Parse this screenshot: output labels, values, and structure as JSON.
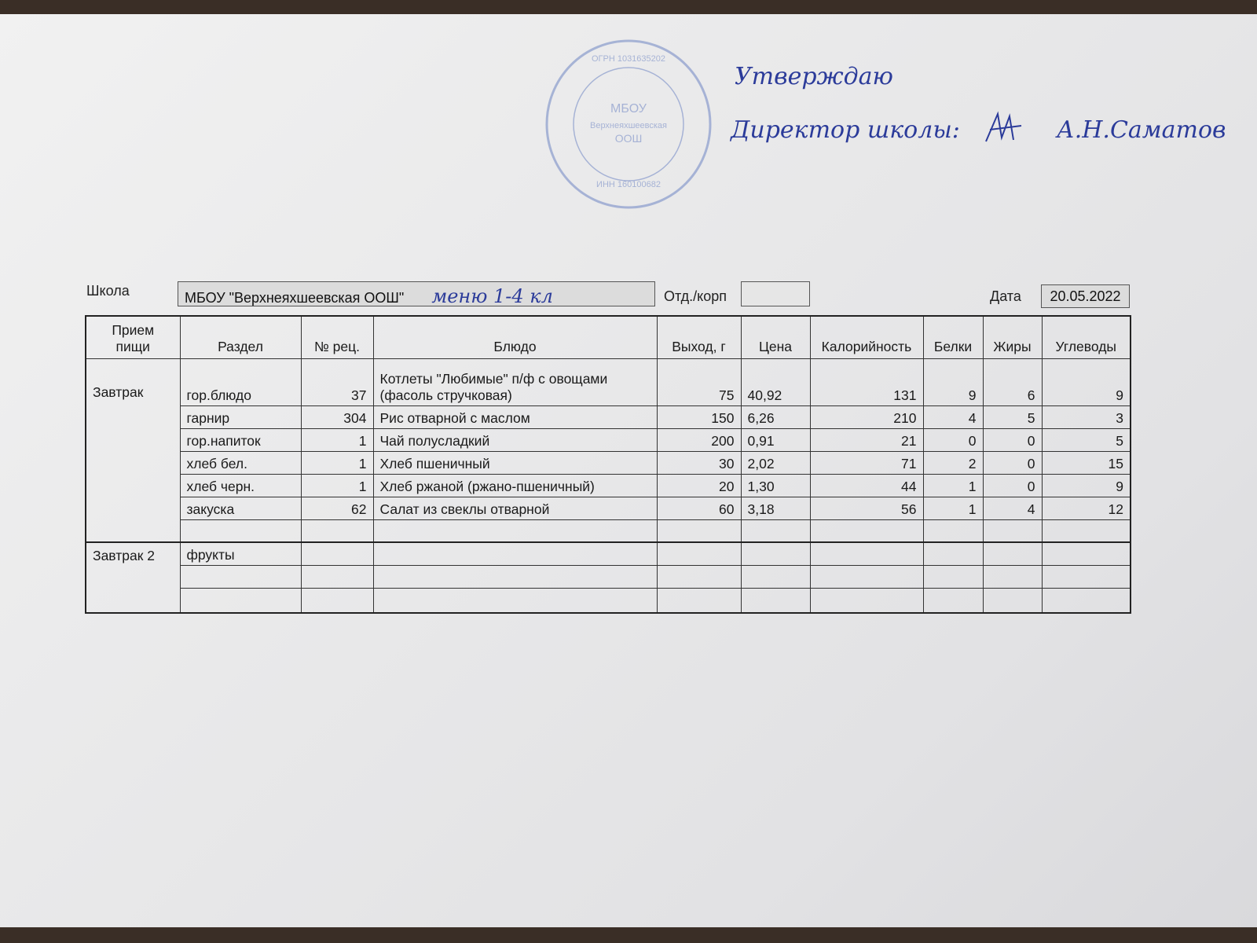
{
  "approval": {
    "approve": "Утверждаю",
    "director": "Директор школы:",
    "name": "А.Н.Саматов"
  },
  "stamp": {
    "center": "МБОУ",
    "line2": "Верхнеяхшеевская",
    "line3": "ООШ",
    "ogrn": "ОГРН 1031635202",
    "inn": "ИНН 160100682"
  },
  "header": {
    "school_label": "Школа",
    "school_value": "МБОУ \"Верхнеяхшеевская ООШ\"",
    "handwritten_note": "меню 1-4 кл",
    "dept_label": "Отд./корп",
    "dept_value": "",
    "date_label": "Дата",
    "date_value": "20.05.2022"
  },
  "table": {
    "columns": [
      "Прием пищи",
      "Раздел",
      "№ рец.",
      "Блюдо",
      "Выход, г",
      "Цена",
      "Калорийность",
      "Белки",
      "Жиры",
      "Углеводы"
    ],
    "meals": [
      {
        "name": "Завтрак",
        "rows": [
          [
            "гор.блюдо",
            "37",
            "Котлеты \"Любимые\" п/ф с овощами (фасоль стручковая)",
            "75",
            "40,92",
            "131",
            "9",
            "6",
            "9"
          ],
          [
            "гарнир",
            "304",
            "Рис отварной с маслом",
            "150",
            "6,26",
            "210",
            "4",
            "5",
            "3"
          ],
          [
            "гор.напиток",
            "1",
            "Чай полусладкий",
            "200",
            "0,91",
            "21",
            "0",
            "0",
            "5"
          ],
          [
            "хлеб бел.",
            "1",
            "Хлеб пшеничный",
            "30",
            "2,02",
            "71",
            "2",
            "0",
            "15"
          ],
          [
            "хлеб черн.",
            "1",
            "Хлеб ржаной (ржано-пшеничный)",
            "20",
            "1,30",
            "44",
            "1",
            "0",
            "9"
          ],
          [
            "закуска",
            "62",
            "Салат из свеклы отварной",
            "60",
            "3,18",
            "56",
            "1",
            "4",
            "12"
          ],
          [
            "",
            "",
            "",
            "",
            "",
            "",
            "",
            "",
            ""
          ]
        ]
      },
      {
        "name": "Завтрак 2",
        "rows": [
          [
            "фрукты",
            "",
            "",
            "",
            "",
            "",
            "",
            "",
            ""
          ],
          [
            "",
            "",
            "",
            "",
            "",
            "",
            "",
            "",
            ""
          ],
          [
            "",
            "",
            "",
            "",
            "",
            "",
            "",
            "",
            ""
          ]
        ]
      }
    ]
  }
}
